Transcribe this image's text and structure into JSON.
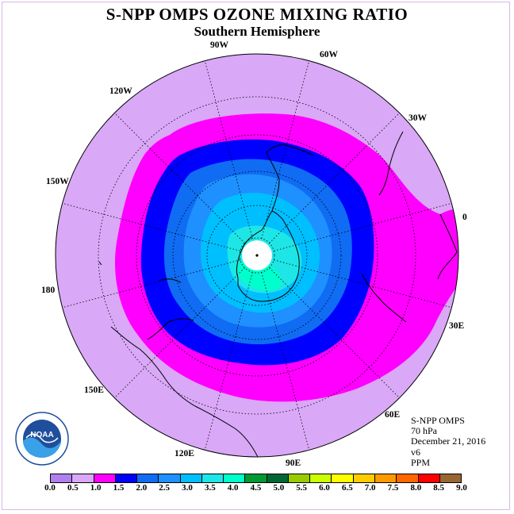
{
  "header": {
    "title": "S-NPP OMPS OZONE MIXING RATIO",
    "subtitle": "Southern Hemisphere"
  },
  "map": {
    "projection": "south polar stereographic",
    "longitude_labels": [
      {
        "id": "90W",
        "text": "90W"
      },
      {
        "id": "60W",
        "text": "60W"
      },
      {
        "id": "30W",
        "text": "30W"
      },
      {
        "id": "0",
        "text": "0"
      },
      {
        "id": "30E",
        "text": "30E"
      },
      {
        "id": "60E",
        "text": "60E"
      },
      {
        "id": "90E",
        "text": "90E"
      },
      {
        "id": "120E",
        "text": "120E"
      },
      {
        "id": "150E",
        "text": "150E"
      },
      {
        "id": "180",
        "text": "180"
      },
      {
        "id": "150W",
        "text": "150W"
      },
      {
        "id": "120W",
        "text": "120W"
      }
    ],
    "colors": {
      "outer": "#d9a8f7",
      "ring_1_0": "#ff00ff",
      "ring_1_5": "#0000ff",
      "ring_2_0": "#0f6cf3",
      "ring_2_5": "#1e90ff",
      "ring_3_0": "#00bfff",
      "ring_3_5": "#1ee6e6",
      "ring_4_0": "#00ffcc",
      "pole": "#ffffff"
    }
  },
  "info": {
    "instrument": "S-NPP OMPS",
    "level": "70 hPa",
    "date": "December 21, 2016",
    "version": "v6",
    "units": "PPM"
  },
  "colorbar": {
    "colors": [
      "#b080f0",
      "#d9a8f7",
      "#ff00ff",
      "#0000ff",
      "#0f6cf3",
      "#1e90ff",
      "#00bfff",
      "#1ee6e6",
      "#00ffcc",
      "#009933",
      "#006633",
      "#99cc00",
      "#ccff00",
      "#ffff00",
      "#ffcc00",
      "#ff9900",
      "#ff6600",
      "#ff0000",
      "#996633"
    ],
    "ticks": [
      "0.0",
      "0.5",
      "1.0",
      "1.5",
      "2.0",
      "2.5",
      "3.0",
      "3.5",
      "4.0",
      "4.5",
      "5.0",
      "5.5",
      "6.0",
      "6.5",
      "7.0",
      "7.5",
      "8.0",
      "8.5",
      "9.0"
    ]
  },
  "logo": {
    "text": "NOAA",
    "ring_text": "NATIONAL OCEANIC AND ATMOSPHERIC ADMINISTRATION · U.S. DEPARTMENT OF COMMERCE"
  }
}
